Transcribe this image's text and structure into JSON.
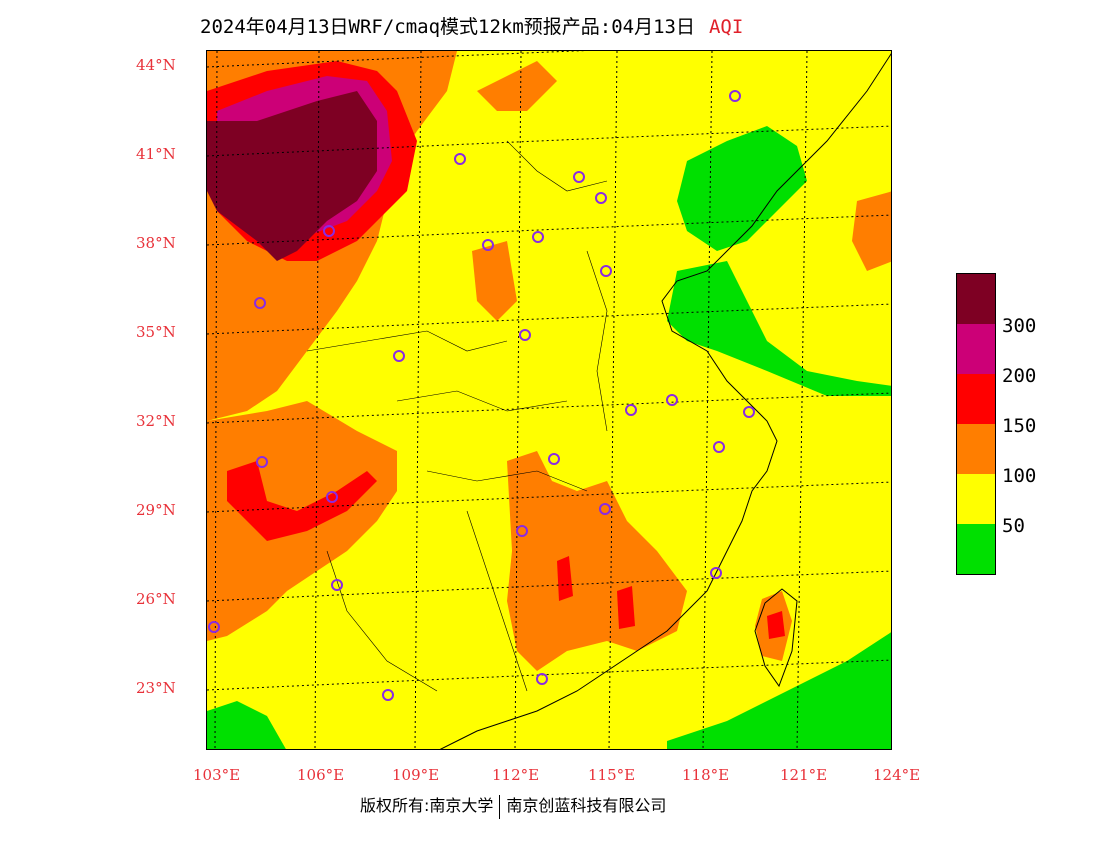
{
  "title": {
    "main": "2024年04月13日WRF/cmaq模式12km预报产品:04月13日",
    "variable": "AQI"
  },
  "axes": {
    "lat_labels": [
      "44°N",
      "41°N",
      "38°N",
      "35°N",
      "32°N",
      "29°N",
      "26°N",
      "23°N"
    ],
    "lon_labels": [
      "103°E",
      "106°E",
      "109°E",
      "112°E",
      "115°E",
      "118°E",
      "121°E",
      "124°E"
    ]
  },
  "legend": {
    "colors": [
      "#00e000",
      "#ffff00",
      "#ff7e00",
      "#ff0000",
      "#cc0077",
      "#7e0023"
    ],
    "labels": [
      "50",
      "100",
      "150",
      "200",
      "300"
    ]
  },
  "footer": {
    "left": "版权所有:南京大学",
    "right": "南京创蓝科技有限公司"
  }
}
